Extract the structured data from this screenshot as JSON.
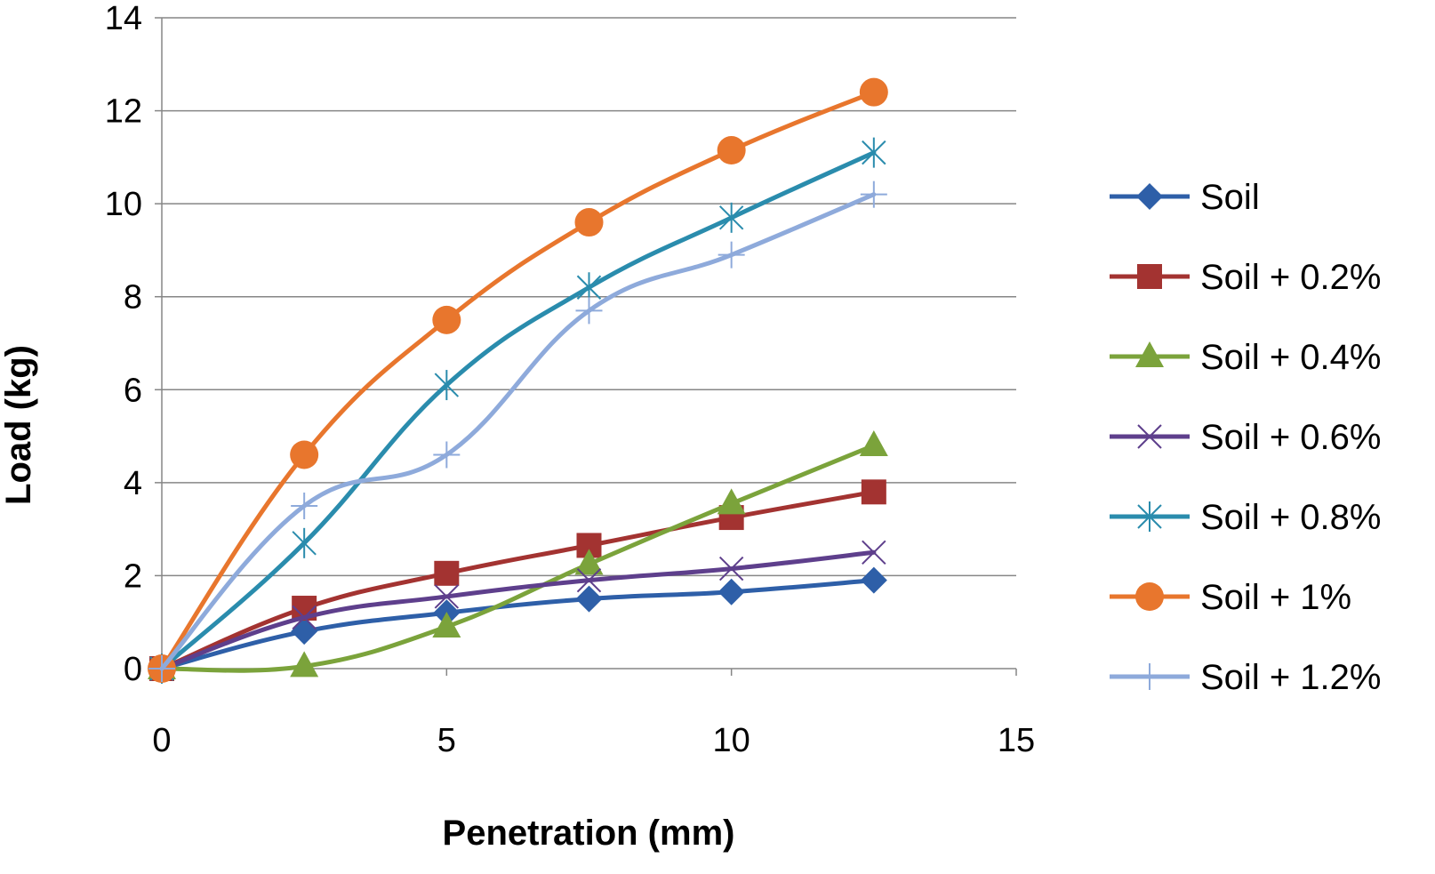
{
  "chart_data": {
    "type": "line",
    "title": "",
    "xlabel": "Penetration (mm)",
    "ylabel": "Load (kg)",
    "xlim": [
      0,
      15
    ],
    "ylim": [
      0,
      14
    ],
    "xticks": [
      "0",
      "5",
      "10",
      "15"
    ],
    "yticks": [
      "0",
      "2",
      "4",
      "6",
      "8",
      "10",
      "12",
      "14"
    ],
    "grid": "horizontal",
    "legend_position": "right",
    "x": [
      0,
      2.5,
      5,
      7.5,
      10,
      12.5
    ],
    "series": [
      {
        "name": "Soil",
        "color": "#2e5fa8",
        "marker": "diamond",
        "values": [
          0,
          0.8,
          1.2,
          1.5,
          1.65,
          1.9
        ]
      },
      {
        "name": "Soil + 0.2%",
        "color": "#a33331",
        "marker": "square",
        "values": [
          0,
          1.3,
          2.05,
          2.65,
          3.25,
          3.8
        ]
      },
      {
        "name": "Soil + 0.4%",
        "color": "#7ba33b",
        "marker": "triangle",
        "values": [
          0,
          0.05,
          0.9,
          2.25,
          3.55,
          4.8
        ]
      },
      {
        "name": "Soil + 0.6%",
        "color": "#5e3f8c",
        "marker": "x",
        "values": [
          0,
          1.1,
          1.55,
          1.9,
          2.15,
          2.5
        ]
      },
      {
        "name": "Soil + 0.8%",
        "color": "#2a8cad",
        "marker": "star",
        "values": [
          0,
          2.7,
          6.1,
          8.2,
          9.7,
          11.1
        ]
      },
      {
        "name": "Soil + 1%",
        "color": "#e8762d",
        "marker": "circle",
        "values": [
          0,
          4.6,
          7.5,
          9.6,
          11.15,
          12.4
        ]
      },
      {
        "name": "Soil + 1.2%",
        "color": "#8eaadb",
        "marker": "plus",
        "values": [
          0,
          3.5,
          4.6,
          7.7,
          8.9,
          10.2
        ]
      }
    ]
  }
}
